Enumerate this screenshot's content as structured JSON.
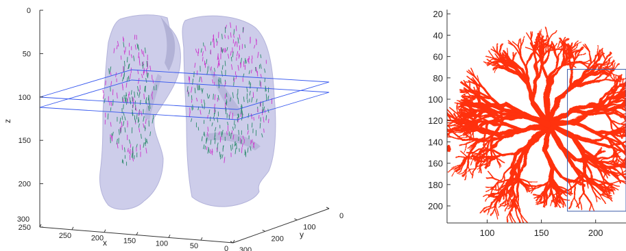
{
  "chart_data": [
    {
      "type": "scatter",
      "subtype": "3d-surface-with-vector-field",
      "xlabel": "x",
      "ylabel": "y",
      "zlabel": "z",
      "x_ticks": [
        "300",
        "250",
        "200",
        "150",
        "100",
        "50",
        "0"
      ],
      "y_ticks": [
        "0",
        "100",
        "200",
        "300"
      ],
      "z_ticks": [
        "0",
        "50",
        "100",
        "150",
        "200",
        "250"
      ],
      "xlim": [
        0,
        300
      ],
      "ylim": [
        0,
        300
      ],
      "zlim": [
        0,
        250
      ],
      "z_reversed": true,
      "slab_planes_z": [
        100,
        112
      ],
      "series": [
        {
          "values": []
        },
        {
          "values": []
        }
      ],
      "colors": {
        "lung_surface": "#c9c9e8",
        "lung_surface_dark": "#a8a8cf",
        "plane": "#3355ee",
        "vector_magenta": "#cc33cc",
        "vector_teal": "#2a8a6a",
        "axis": "#333333"
      },
      "grid": false
    },
    {
      "type": "heatmap",
      "subtype": "binary-segmentation-image",
      "x_ticks": [
        "100",
        "150",
        "200"
      ],
      "y_ticks": [
        "20",
        "40",
        "60",
        "80",
        "100",
        "120",
        "140",
        "160",
        "180",
        "200"
      ],
      "xlim": [
        63,
        228
      ],
      "ylim": [
        216,
        16
      ],
      "roi_rectangle": {
        "x": [
          174,
          228
        ],
        "y": [
          72,
          205
        ]
      },
      "colors": {
        "vessel": "#ff3010",
        "background": "#ffffff",
        "roi": "#3a5aa8",
        "axis": "#333333"
      },
      "grid": false
    }
  ]
}
